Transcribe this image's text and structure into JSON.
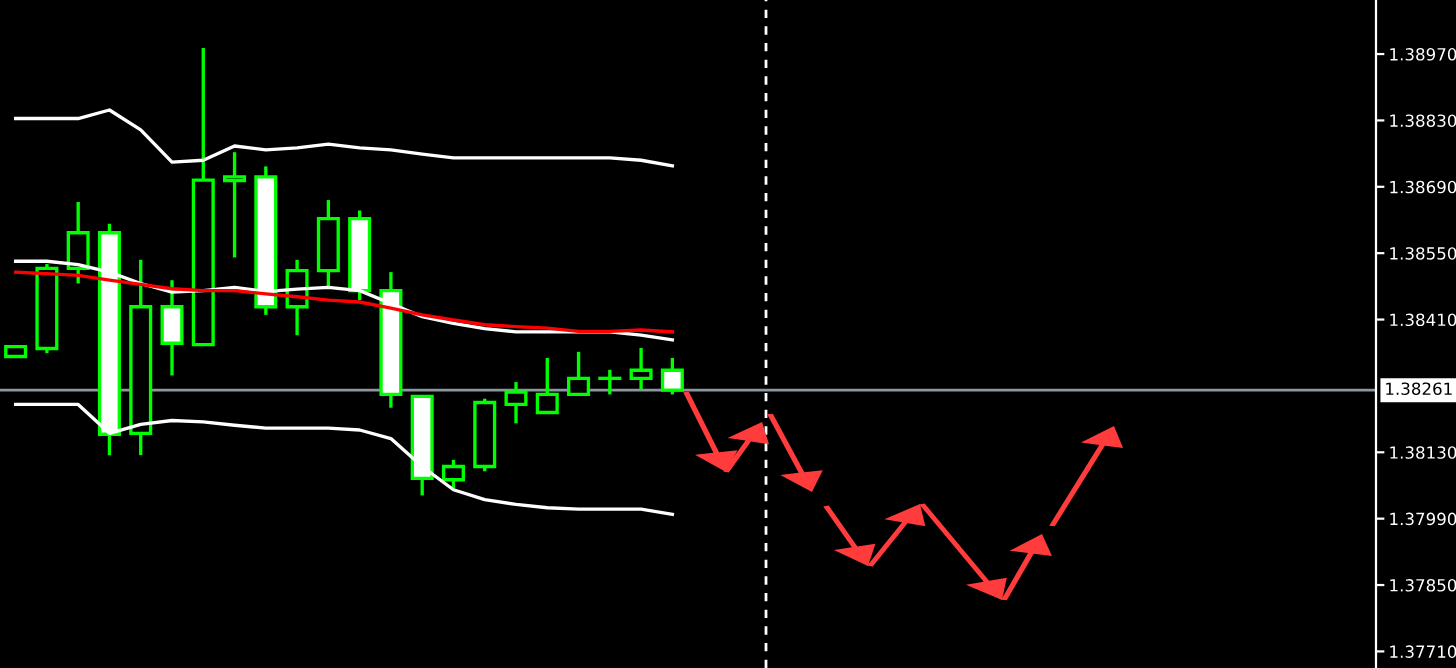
{
  "chart_data": {
    "type": "candlestick",
    "categories": [
      null,
      null,
      null,
      null,
      null,
      null,
      null,
      null,
      null,
      null,
      null,
      null,
      null,
      null,
      null,
      null,
      null,
      null,
      null,
      null,
      null,
      null,
      null,
      null,
      null,
      null,
      null,
      null,
      null,
      null,
      null,
      null,
      null,
      null,
      null,
      null,
      null,
      null,
      null,
      null,
      null,
      null,
      null,
      null
    ],
    "color": "#00ff00",
    "colors": [
      "#000000",
      "#000000",
      "#000000",
      "#ffffff",
      "#000000",
      "#ffffff",
      "#000000",
      "#000000",
      "#ffffff",
      "#000000",
      "#000000",
      "#ffffff",
      "#ffffff",
      "#ffffff",
      "#000000",
      "#000000",
      "#000000",
      "#000000",
      "#000000",
      "#00ff00",
      "#000000",
      "#ffffff",
      null,
      null,
      null,
      null,
      null,
      null,
      null,
      null,
      null,
      null,
      null,
      null,
      null,
      null,
      null,
      null,
      null,
      null,
      null,
      null,
      null,
      null
    ],
    "ohlc": [
      [
        1.38332,
        1.38356,
        1.3833,
        1.38353
      ],
      [
        1.38349,
        1.38527,
        1.38339,
        1.38518
      ],
      [
        1.38518,
        1.38658,
        1.38486,
        1.38593
      ],
      [
        1.38593,
        1.38612,
        1.38124,
        1.38168
      ],
      [
        1.3817,
        1.38536,
        1.38124,
        1.38437
      ],
      [
        1.38437,
        1.38493,
        1.38292,
        1.3836
      ],
      [
        1.38357,
        1.38983,
        1.38357,
        1.38704
      ],
      [
        1.38703,
        1.38763,
        1.38541,
        1.38711
      ],
      [
        1.38711,
        1.38733,
        1.3842,
        1.38437
      ],
      [
        1.38437,
        1.38536,
        1.38377,
        1.38513
      ],
      [
        1.38513,
        1.38662,
        1.38475,
        1.38623
      ],
      [
        1.38623,
        1.3864,
        1.38451,
        1.38471
      ],
      [
        1.38471,
        1.3851,
        1.38224,
        1.38252
      ],
      [
        1.38248,
        1.38248,
        1.38039,
        1.38075
      ],
      [
        1.38072,
        1.38114,
        1.38051,
        1.381
      ],
      [
        1.381,
        1.38243,
        1.3809,
        1.38235
      ],
      [
        1.38231,
        1.38278,
        1.38191,
        1.38257
      ],
      [
        1.38214,
        1.38329,
        1.38214,
        1.38252
      ],
      [
        1.38252,
        1.38342,
        1.38252,
        1.38286
      ],
      [
        1.38286,
        1.38304,
        1.38252,
        1.38286
      ],
      [
        1.38286,
        1.3835,
        1.38262,
        1.38303
      ],
      [
        1.38303,
        1.38329,
        1.38252,
        1.38261
      ],
      null,
      null,
      null,
      null,
      null,
      null,
      null,
      null,
      null,
      null,
      null,
      null,
      null,
      null,
      null,
      null,
      null,
      null,
      null,
      null,
      null,
      null
    ],
    "series": [
      {
        "type": "line",
        "color": "#ffffff",
        "values": [
          1.38834,
          1.38834,
          1.38834,
          1.38852,
          1.3881,
          1.38742,
          1.38746,
          1.38776,
          1.38768,
          1.38772,
          1.3878,
          1.38772,
          1.38768,
          1.38759,
          1.38751,
          1.38751,
          1.38751,
          1.38751,
          1.38751,
          1.38751,
          1.38746,
          1.38734,
          null,
          null,
          null,
          null,
          null,
          null,
          null,
          null,
          null,
          null,
          null,
          null,
          null,
          null,
          null,
          null,
          null,
          null,
          null,
          null,
          null,
          null
        ]
      },
      {
        "type": "line",
        "color": "#ffffff",
        "values": [
          1.38533,
          1.38533,
          1.38526,
          1.3851,
          1.38486,
          1.38468,
          1.38471,
          1.38478,
          1.38469,
          1.38474,
          1.38478,
          1.38471,
          1.38444,
          1.38416,
          1.38402,
          1.38391,
          1.38384,
          1.38384,
          1.38384,
          1.38384,
          1.38377,
          1.38367,
          null,
          null,
          null,
          null,
          null,
          null,
          null,
          null,
          null,
          null,
          null,
          null,
          null,
          null,
          null,
          null,
          null,
          null,
          null,
          null,
          null,
          null
        ]
      },
      {
        "type": "line",
        "color": "#ff0000",
        "values": [
          1.3851,
          1.38507,
          1.38503,
          1.38493,
          1.38484,
          1.38475,
          1.38471,
          1.38471,
          1.38464,
          1.38458,
          1.38451,
          1.38447,
          1.38434,
          1.3842,
          1.38409,
          1.38399,
          1.38395,
          1.38392,
          1.38385,
          1.38385,
          1.38388,
          1.38384,
          null,
          null,
          null,
          null,
          null,
          null,
          null,
          null,
          null,
          null,
          null,
          null,
          null,
          null,
          null,
          null,
          null,
          null,
          null,
          null,
          null,
          null
        ]
      },
      {
        "type": "line",
        "color": "#ffffff",
        "values": [
          1.38231,
          1.38231,
          1.38231,
          1.3817,
          1.38189,
          1.38197,
          1.38194,
          1.38187,
          1.38181,
          1.38181,
          1.38181,
          1.38177,
          1.38159,
          1.381,
          1.38051,
          1.3803,
          1.3802,
          1.38013,
          1.3801,
          1.3801,
          1.3801,
          1.37999,
          null,
          null,
          null,
          null,
          null,
          null,
          null,
          null,
          null,
          null,
          null,
          null,
          null,
          null,
          null,
          null,
          null,
          null,
          null,
          null,
          null,
          null
        ]
      }
    ],
    "ylim": [
      1.37675,
      1.39084
    ],
    "yticks": [
      {
        "value": 1.3897,
        "label": "1.38970"
      },
      {
        "value": 1.3883,
        "label": "1.38830"
      },
      {
        "value": 1.3869,
        "label": "1.38690"
      },
      {
        "value": 1.3855,
        "label": "1.38550"
      },
      {
        "value": 1.3841,
        "label": "1.38410"
      },
      {
        "value": 1.3813,
        "label": "1.38130"
      },
      {
        "value": 1.3799,
        "label": "1.37990"
      },
      {
        "value": 1.3785,
        "label": "1.37850"
      },
      {
        "value": 1.3771,
        "label": "1.37710"
      }
    ],
    "ref_lines": [
      {
        "axis": "y",
        "value": 1.38261,
        "label": "1.38261",
        "color": "#8c96a0",
        "line_style": "solid"
      }
    ],
    "tick_labels": "y",
    "grid": false
  }
}
